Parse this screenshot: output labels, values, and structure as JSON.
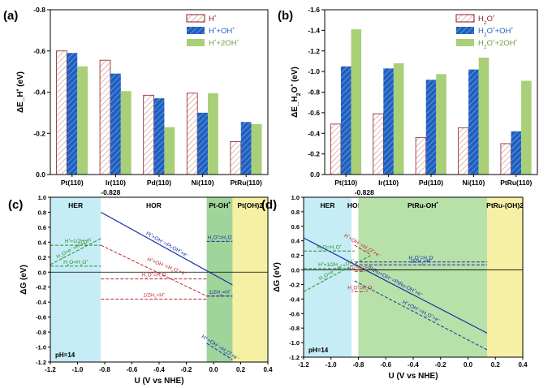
{
  "chart_data": [
    {
      "id": "a",
      "type": "bar",
      "panel_label": "(a)",
      "ylabel": "ΔE_H* (eV)",
      "ylim": [
        0,
        -0.8
      ],
      "yticks": [
        "0.0",
        "-0.2",
        "-0.4",
        "-0.6",
        "-0.8"
      ],
      "categories": [
        "Pt(110)",
        "Ir(110)",
        "Pd(110)",
        "Ni(110)",
        "PtRu(110)"
      ],
      "legend_position": "top-right",
      "series": [
        {
          "name": "H*",
          "color": "#8b1c1c",
          "pattern": "hatch-light",
          "values": [
            -0.6,
            -0.555,
            -0.385,
            -0.395,
            -0.16
          ]
        },
        {
          "name": "H*+OH*",
          "color": "#1f5fbf",
          "pattern": "hatch-dark",
          "values": [
            -0.59,
            -0.49,
            -0.37,
            -0.3,
            -0.255
          ]
        },
        {
          "name": "H*+2OH*",
          "color": "#a9cf78",
          "pattern": "solid",
          "values": [
            -0.525,
            -0.405,
            -0.23,
            -0.395,
            -0.245
          ]
        }
      ]
    },
    {
      "id": "b",
      "type": "bar",
      "panel_label": "(b)",
      "ylabel": "ΔE_H2O* (eV)",
      "ylim": [
        0,
        -1.6
      ],
      "yticks": [
        "0.0",
        "-0.2",
        "-0.4",
        "-0.6",
        "-0.8",
        "-1.0",
        "-1.2",
        "-1.4",
        "-1.6"
      ],
      "categories": [
        "Pt(110)",
        "Ir(110)",
        "Pd(110)",
        "Ni(110)",
        "PtRu(110)"
      ],
      "legend_position": "top-right",
      "series": [
        {
          "name": "H2O*",
          "color": "#8b1c1c",
          "pattern": "hatch-light",
          "values": [
            -0.49,
            -0.59,
            -0.36,
            -0.455,
            -0.3
          ]
        },
        {
          "name": "H2O*+OH*",
          "color": "#1f5fbf",
          "pattern": "hatch-dark",
          "values": [
            -1.05,
            -1.03,
            -0.92,
            -1.02,
            -0.42
          ]
        },
        {
          "name": "H2O*+2OH*",
          "color": "#a9cf78",
          "pattern": "solid",
          "values": [
            -1.41,
            -1.08,
            -0.975,
            -1.135,
            -0.91
          ]
        }
      ]
    },
    {
      "id": "c",
      "type": "line",
      "panel_label": "(c)",
      "xlabel": "U (V vs NHE)",
      "ylabel": "ΔG (eV)",
      "xlim": [
        -1.2,
        0.4
      ],
      "ylim": [
        -1.2,
        1.0
      ],
      "xticks": [
        "-1.2",
        "-1.0",
        "-0.8",
        "-0.6",
        "-0.4",
        "-0.2",
        "0.0",
        "0.2",
        "0.4"
      ],
      "yticks": [
        "-1.2",
        "-1.0",
        "-0.8",
        "-0.6",
        "-0.4",
        "-0.2",
        "0.0",
        "0.2",
        "0.4",
        "0.6",
        "0.8",
        "1.0"
      ],
      "ph_label": "pH=14",
      "marker_label": "-0.828",
      "regions": [
        {
          "name": "HER",
          "x": [
            -1.2,
            -0.828
          ],
          "color": "#c6ecf5"
        },
        {
          "name": "HOR",
          "x": [
            -0.828,
            -0.05
          ],
          "color": "#ffffff"
        },
        {
          "name": "Pt-OH*",
          "x": [
            -0.05,
            0.14
          ],
          "color": "#9fd49a"
        },
        {
          "name": "Pt(OH)2",
          "x": [
            0.14,
            0.4
          ],
          "color": "#f6f0a4"
        }
      ],
      "lines": [
        {
          "label": "Pt*+OH⁻=Pt-OH*+e⁻",
          "color": "#1a2fa8",
          "style": "solid",
          "x": [
            -0.828,
            0.14
          ],
          "y": [
            0.8,
            -0.17
          ]
        },
        {
          "label": "H*+OH⁻=H2O*+e⁻",
          "color": "#c0262b",
          "style": "dashed",
          "x": [
            -0.828,
            -0.05,
            0.14
          ],
          "y": [
            0.36,
            -0.32,
            -0.32
          ]
        },
        {
          "label": "H2O*=H2O",
          "color": "#1a2fa8",
          "style": "dashed",
          "x": [
            -0.05,
            0.14
          ],
          "y": [
            0.41,
            0.41
          ]
        },
        {
          "label": "1/2H2=H*",
          "color": "#1a2fa8",
          "style": "dashed",
          "x": [
            -0.05,
            0.14
          ],
          "y": [
            -0.32,
            -0.32
          ]
        },
        {
          "label": "H2O*=H2O",
          "color": "#c0262b",
          "style": "dashed",
          "x": [
            -0.828,
            -0.05
          ],
          "y": [
            -0.09,
            -0.09
          ]
        },
        {
          "label": "1/2H2=H*",
          "color": "#c0262b",
          "style": "dashed",
          "x": [
            -0.828,
            -0.05
          ],
          "y": [
            -0.36,
            -0.36
          ]
        },
        {
          "label": "H*=1/2H2",
          "color": "#2a8f2a",
          "style": "dashed",
          "x": [
            -1.2,
            -0.828
          ],
          "y": [
            0.36,
            0.36
          ]
        },
        {
          "label": "H2O+e⁻=H*+OH⁻",
          "color": "#2a8f2a",
          "style": "dashed",
          "x": [
            -1.2,
            -0.828
          ],
          "y": [
            0.1,
            0.45
          ]
        },
        {
          "label": "H2O=H2O*",
          "color": "#2a8f2a",
          "style": "dashed",
          "x": [
            -1.2,
            -0.828
          ],
          "y": [
            0.08,
            0.08
          ]
        },
        {
          "label": "H⁺+OH⁻=H2O*+e⁻",
          "color": "#1a2fa8",
          "style": "dashed",
          "x": [
            -0.05,
            0.14
          ],
          "y": [
            -0.95,
            -1.17
          ]
        }
      ]
    },
    {
      "id": "d",
      "type": "line",
      "panel_label": "(d)",
      "xlabel": "U (V vs NHE)",
      "ylabel": "ΔG (eV)",
      "xlim": [
        -1.2,
        0.4
      ],
      "ylim": [
        -1.2,
        1.0
      ],
      "xticks": [
        "-1.2",
        "-1.0",
        "-0.8",
        "-0.6",
        "-0.4",
        "-0.2",
        "0.0",
        "0.2",
        "0.4"
      ],
      "yticks": [
        "-1.2",
        "-1.0",
        "-0.8",
        "-0.6",
        "-0.4",
        "-0.2",
        "0.0",
        "0.2",
        "0.4",
        "0.6",
        "0.8",
        "1.0"
      ],
      "ph_label": "pH=14",
      "marker_label": "-0.828",
      "regions": [
        {
          "name": "HER",
          "x": [
            -1.2,
            -0.85
          ],
          "color": "#c6ecf5"
        },
        {
          "name": "HOR",
          "x": [
            -0.85,
            -0.8
          ],
          "color": "#ffffff"
        },
        {
          "name": "PtRu-OH*",
          "x": [
            -0.8,
            0.14
          ],
          "color": "#b7e1a8"
        },
        {
          "name": "PtRu-(OH)2",
          "x": [
            0.14,
            0.4
          ],
          "color": "#f6f0a4"
        }
      ],
      "lines": [
        {
          "label": "PtRu+OH⁻=PtRu-OH*+e⁻",
          "color": "#1a2fa8",
          "style": "solid",
          "x": [
            -1.2,
            0.14
          ],
          "y": [
            0.44,
            -0.87
          ]
        },
        {
          "label": "H*+OH⁻=H2O*+e⁻",
          "color": "#1a2fa8",
          "style": "dashed",
          "x": [
            -0.828,
            0.14
          ],
          "y": [
            -0.15,
            -1.1
          ]
        },
        {
          "label": "H2O*=H2O",
          "color": "#1a2fa8",
          "style": "dashed",
          "x": [
            -0.828,
            0.14
          ],
          "y": [
            0.11,
            0.11
          ]
        },
        {
          "label": "1/2H2=H*",
          "color": "#1a2fa8",
          "style": "dashed",
          "x": [
            -0.828,
            0.14
          ],
          "y": [
            0.07,
            0.07
          ]
        },
        {
          "label": "H*+OH⁻=H2O*+e⁻",
          "color": "#c0262b",
          "style": "dashed",
          "x": [
            -0.828,
            -0.72
          ],
          "y": [
            0.34,
            0.22
          ]
        },
        {
          "label": "1/2H2=H*",
          "color": "#c0262b",
          "style": "dashed",
          "x": [
            -0.828,
            -0.75
          ],
          "y": [
            -0.02,
            -0.02
          ]
        },
        {
          "label": "H2O*=H2O",
          "color": "#c0262b",
          "style": "dashed",
          "x": [
            -0.828,
            -0.75
          ],
          "y": [
            -0.3,
            -0.3
          ]
        },
        {
          "label": "H2O=H2O*",
          "color": "#2a8f2a",
          "style": "dashed",
          "x": [
            -1.2,
            -0.828
          ],
          "y": [
            0.26,
            0.26
          ]
        },
        {
          "label": "H*=1/2H2",
          "color": "#2a8f2a",
          "style": "dashed",
          "x": [
            -1.2,
            -0.828
          ],
          "y": [
            0.02,
            0.02
          ]
        },
        {
          "label": "H2O+e⁻=H*+OH⁻",
          "color": "#2a8f2a",
          "style": "dashed",
          "x": [
            -1.2,
            -0.7
          ],
          "y": [
            -0.3,
            0.21
          ]
        }
      ]
    }
  ]
}
